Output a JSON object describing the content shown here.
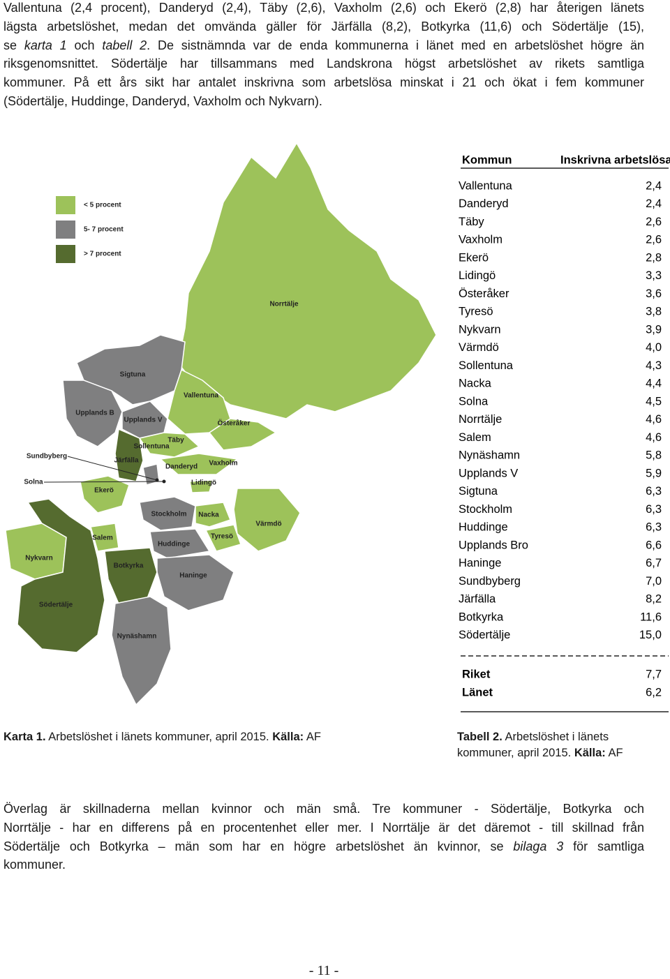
{
  "paragraphs": [
    {
      "lines": [
        "Vallentuna (2,4 procent), Danderyd (2,4), Täby (2,6), Vaxholm (2,6) och Ekerö (2,8) har återigen länets",
        "lägsta arbetslöshet, medan det omvända gäller för Järfälla (8,2), Botkyrka (11,6) och Södertälje (15),",
        [
          "se ",
          "karta 1",
          " och ",
          "tabell 2",
          ". De sistnämnda var de enda kommunerna i länet med en arbetslöshet högre än"
        ],
        "riksgenomsnittet. Södertälje har tillsammans med Landskrona högst arbetslöshet av rikets samtliga",
        "kommuner. På ett års sikt har antalet inskrivna som arbetslösa minskat i 21 och ökat i fem kommuner",
        "(Södertälje, Huddinge, Danderyd, Vaxholm och Nykvarn)."
      ]
    },
    {
      "lines": [
        "Överlag är skillnaderna mellan kvinnor och män små. Tre kommuner - Södertälje, Botkyrka och",
        "Norrtälje - har en differens på en procentenhet eller mer. I Norrtälje är det däremot - till skillnad från",
        [
          "Södertälje och Botkyrka – män som har en högre arbetslöshet än kvinnor, se ",
          "bilaga 3",
          " för samtliga"
        ],
        "kommuner."
      ]
    }
  ],
  "map": {
    "legend": [
      "< 5 procent",
      "5- 7 procent",
      "> 7 procent"
    ],
    "labels": [
      "Norrtälje",
      "Sigtuna",
      "Vallentuna",
      "Upplands B",
      "Upplands V",
      "Österåker",
      "Täby",
      "Sollentuna",
      "Sundbyberg",
      "Järfälla",
      "Danderyd",
      "Vaxholm",
      "Solna",
      "Lidingö",
      "Ekerö",
      "Stockholm",
      "Nacka",
      "Värmdö",
      "Salem",
      "Tyresö",
      "Huddinge",
      "Nykvarn",
      "Botkyrka",
      "Haninge",
      "Södertälje",
      "Nynäshamn"
    ],
    "caption": [
      "Karta 1.",
      " Arbetslöshet i länets kommuner, april 2015. ",
      "Källa:",
      " AF"
    ]
  },
  "table": {
    "header": [
      "Kommun",
      "Inskrivna arbetslösa"
    ],
    "rows": [
      [
        "Vallentuna",
        "2,4"
      ],
      [
        "Danderyd",
        "2,4"
      ],
      [
        "Täby",
        "2,6"
      ],
      [
        "Vaxholm",
        "2,6"
      ],
      [
        "Ekerö",
        "2,8"
      ],
      [
        "Lidingö",
        "3,3"
      ],
      [
        "Österåker",
        "3,6"
      ],
      [
        "Tyresö",
        "3,8"
      ],
      [
        "Nykvarn",
        "3,9"
      ],
      [
        "Värmdö",
        "4,0"
      ],
      [
        "Sollentuna",
        "4,3"
      ],
      [
        "Nacka",
        "4,4"
      ],
      [
        "Solna",
        "4,5"
      ],
      [
        "Norrtälje",
        "4,6"
      ],
      [
        "Salem",
        "4,6"
      ],
      [
        "Nynäshamn",
        "5,8"
      ],
      [
        "Upplands V",
        "5,9"
      ],
      [
        "Sigtuna",
        "6,3"
      ],
      [
        "Stockholm",
        "6,3"
      ],
      [
        "Huddinge",
        "6,3"
      ],
      [
        "Upplands Bro",
        "6,6"
      ],
      [
        "Haninge",
        "6,7"
      ],
      [
        "Sundbyberg",
        "7,0"
      ],
      [
        "Järfälla",
        "8,2"
      ],
      [
        "Botkyrka",
        "11,6"
      ],
      [
        "Södertälje",
        "15,0"
      ]
    ],
    "summary": [
      [
        "Riket",
        "7,7"
      ],
      [
        "Länet",
        "6,2"
      ]
    ],
    "caption": [
      "Tabell 2.",
      " Arbetslöshet i länets",
      "kommuner, april 2015. ",
      "Källa:",
      " AF"
    ]
  },
  "page_number": "- 11 -"
}
